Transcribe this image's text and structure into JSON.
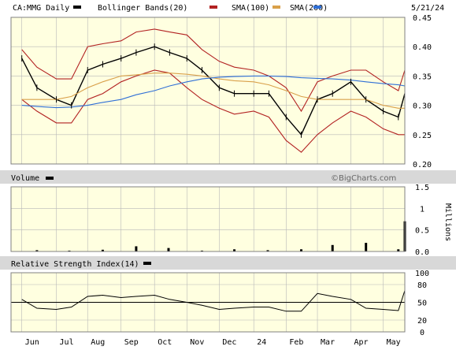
{
  "header": {
    "symbol_label": "CA:MMG Daily",
    "date_label": "5/21/24",
    "legend": [
      {
        "label": "Bollinger Bands(20)",
        "color": "#b22222"
      },
      {
        "label": "SMA(100)",
        "color": "#d9a04a"
      },
      {
        "label": "SMA(200)",
        "color": "#2f6fd6"
      }
    ],
    "price_legend_swatch": "#000000",
    "watermark": "©BigCharts.com"
  },
  "colors": {
    "panel_bg": "#ffffe0",
    "grid": "#b8b8b8",
    "price": "#000000",
    "bollinger": "#b22222",
    "sma100": "#d9a04a",
    "sma200": "#2f6fd6",
    "frame": "#808080"
  },
  "chart_data": [
    {
      "type": "line",
      "panel": "price",
      "x": [
        "2023-06-01",
        "2023-06-15",
        "2023-07-03",
        "2023-07-17",
        "2023-08-01",
        "2023-08-15",
        "2023-09-01",
        "2023-09-15",
        "2023-10-02",
        "2023-10-16",
        "2023-11-01",
        "2023-11-15",
        "2023-12-01",
        "2023-12-15",
        "2024-01-02",
        "2024-01-16",
        "2024-02-01",
        "2024-02-15",
        "2024-03-01",
        "2024-03-15",
        "2024-04-01",
        "2024-04-15",
        "2024-05-01",
        "2024-05-15",
        "2024-05-21"
      ],
      "series": [
        {
          "name": "CA:MMG Daily",
          "values": [
            0.38,
            0.33,
            0.31,
            0.3,
            0.36,
            0.37,
            0.38,
            0.39,
            0.4,
            0.39,
            0.38,
            0.36,
            0.33,
            0.32,
            0.32,
            0.32,
            0.28,
            0.25,
            0.31,
            0.32,
            0.34,
            0.31,
            0.29,
            0.28,
            0.32
          ]
        },
        {
          "name": "Bollinger Bands(20)",
          "values": [
            0.395,
            0.365,
            0.345,
            0.345,
            0.4,
            0.405,
            0.41,
            0.425,
            0.43,
            0.425,
            0.42,
            0.395,
            0.375,
            0.365,
            0.36,
            0.35,
            0.33,
            0.29,
            0.34,
            0.35,
            0.36,
            0.36,
            0.34,
            0.325,
            0.36
          ]
        },
        {
          "name": "Bollinger Bands(20)",
          "values": [
            0.31,
            0.29,
            0.27,
            0.27,
            0.31,
            0.32,
            0.34,
            0.35,
            0.36,
            0.355,
            0.33,
            0.31,
            0.295,
            0.285,
            0.29,
            0.28,
            0.24,
            0.22,
            0.25,
            0.27,
            0.29,
            0.28,
            0.26,
            0.25,
            0.25
          ]
        },
        {
          "name": "SMA(100)",
          "values": [
            0.31,
            0.31,
            0.31,
            0.315,
            0.33,
            0.34,
            0.35,
            0.352,
            0.355,
            0.355,
            0.353,
            0.35,
            0.345,
            0.342,
            0.34,
            0.335,
            0.325,
            0.315,
            0.31,
            0.31,
            0.31,
            0.31,
            0.3,
            0.295,
            0.295
          ]
        },
        {
          "name": "SMA(200)",
          "values": [
            0.3,
            0.298,
            0.296,
            0.297,
            0.3,
            0.305,
            0.31,
            0.318,
            0.325,
            0.333,
            0.34,
            0.345,
            0.348,
            0.349,
            0.35,
            0.35,
            0.349,
            0.347,
            0.346,
            0.345,
            0.343,
            0.34,
            0.337,
            0.335,
            0.333
          ]
        }
      ],
      "ylim": [
        0.2,
        0.45
      ],
      "y_ticks": [
        "0.45",
        "0.40",
        "0.35",
        "0.30",
        "0.25",
        "0.20"
      ],
      "grid": true
    },
    {
      "type": "bar",
      "panel": "volume",
      "title": "Volume",
      "ylabel": "Millions",
      "x": [
        "2023-06",
        "2023-07",
        "2023-08",
        "2023-09",
        "2023-10",
        "2023-11",
        "2023-12",
        "2024-01",
        "2024-02",
        "2024-03",
        "2024-04",
        "2024-05",
        "2024-05-21"
      ],
      "values": [
        0.03,
        0.02,
        0.04,
        0.12,
        0.08,
        0.02,
        0.05,
        0.03,
        0.05,
        0.15,
        0.2,
        0.05,
        0.7
      ],
      "ylim": [
        0,
        1.5
      ],
      "y_ticks": [
        "1.5",
        "1",
        "0.5",
        "0.0"
      ],
      "grid": true
    },
    {
      "type": "line",
      "panel": "rsi",
      "title": "Relative Strength Index(14)",
      "x": [
        "2023-06-01",
        "2023-06-15",
        "2023-07-03",
        "2023-07-17",
        "2023-08-01",
        "2023-08-15",
        "2023-09-01",
        "2023-09-15",
        "2023-10-02",
        "2023-10-16",
        "2023-11-01",
        "2023-11-15",
        "2023-12-01",
        "2023-12-15",
        "2024-01-02",
        "2024-01-16",
        "2024-02-01",
        "2024-02-15",
        "2024-03-01",
        "2024-03-15",
        "2024-04-01",
        "2024-04-15",
        "2024-05-01",
        "2024-05-15",
        "2024-05-21"
      ],
      "series": [
        {
          "name": "Relative Strength Index(14)",
          "values": [
            55,
            40,
            38,
            42,
            60,
            62,
            58,
            60,
            62,
            55,
            50,
            45,
            38,
            40,
            42,
            42,
            35,
            35,
            65,
            60,
            55,
            40,
            38,
            36,
            70
          ]
        }
      ],
      "reference_line": 50,
      "ylim": [
        0,
        100
      ],
      "y_ticks": [
        "100",
        "80",
        "50",
        "20",
        "0"
      ],
      "grid": true
    }
  ],
  "x_axis": {
    "month_labels": [
      "Jun",
      "Jul",
      "Aug",
      "Sep",
      "Oct",
      "Nov",
      "Dec",
      "24",
      "Feb",
      "Mar",
      "Apr",
      "May"
    ]
  }
}
